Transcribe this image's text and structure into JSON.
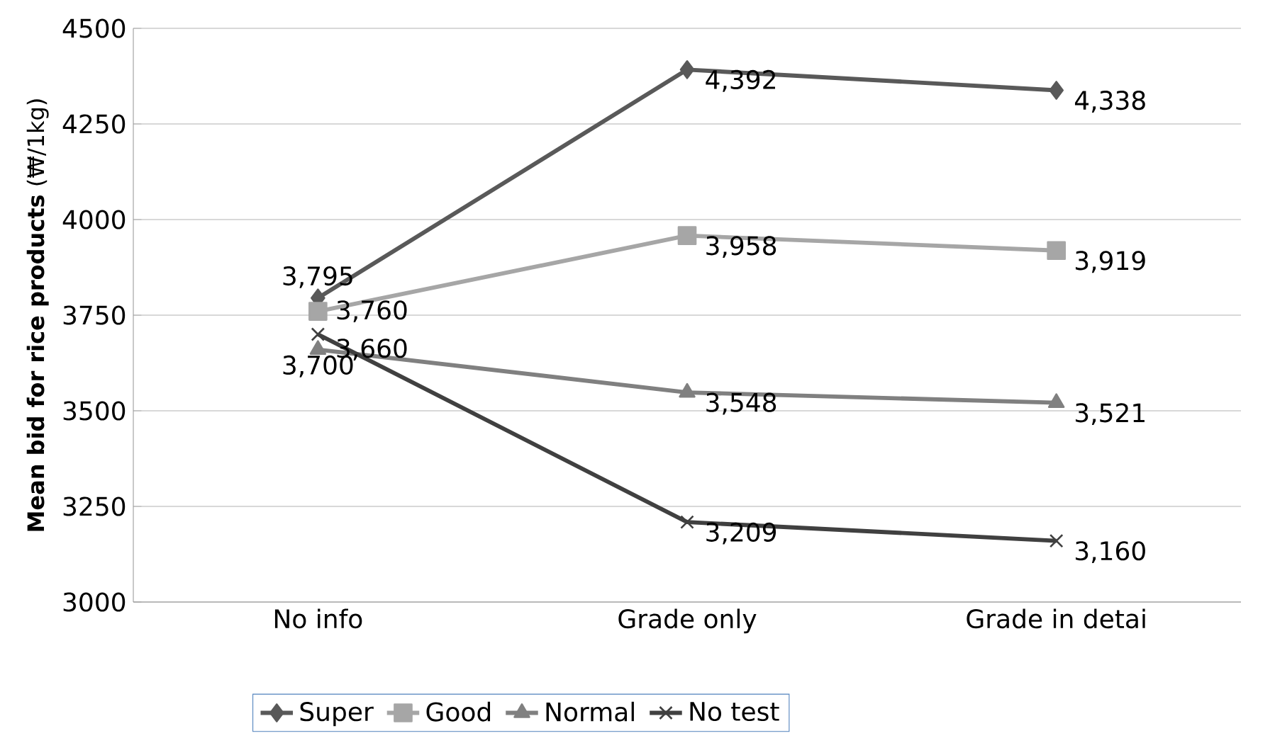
{
  "chart_data": {
    "type": "line",
    "ylabel": "**Mean bid for rice products** (₩/1kg)",
    "categories": [
      "No info",
      "Grade only",
      "Grade in detai"
    ],
    "series": [
      {
        "name": "Super",
        "color": "#595959",
        "marker": "diamond",
        "values": [
          3795,
          4392,
          4338
        ],
        "value_labels": [
          "3,795",
          "4,392",
          "4,338"
        ]
      },
      {
        "name": "Good",
        "color": "#a6a6a6",
        "marker": "square",
        "values": [
          3760,
          3958,
          3919
        ],
        "value_labels": [
          "3,760",
          "3,958",
          "3,919"
        ]
      },
      {
        "name": "Normal",
        "color": "#808080",
        "marker": "triangle",
        "values": [
          3660,
          3548,
          3521
        ],
        "value_labels": [
          "3,660",
          "3,548",
          "3,521"
        ]
      },
      {
        "name": "No test",
        "color": "#404040",
        "marker": "cross",
        "values": [
          3700,
          3209,
          3160
        ],
        "value_labels": [
          "3,700",
          "3,209",
          "3,160"
        ]
      }
    ],
    "ylim": [
      3000,
      4500
    ],
    "yticks": [
      3000,
      3250,
      3500,
      3750,
      4000,
      4250,
      4500
    ],
    "grid": "y",
    "legend": "bottom"
  }
}
